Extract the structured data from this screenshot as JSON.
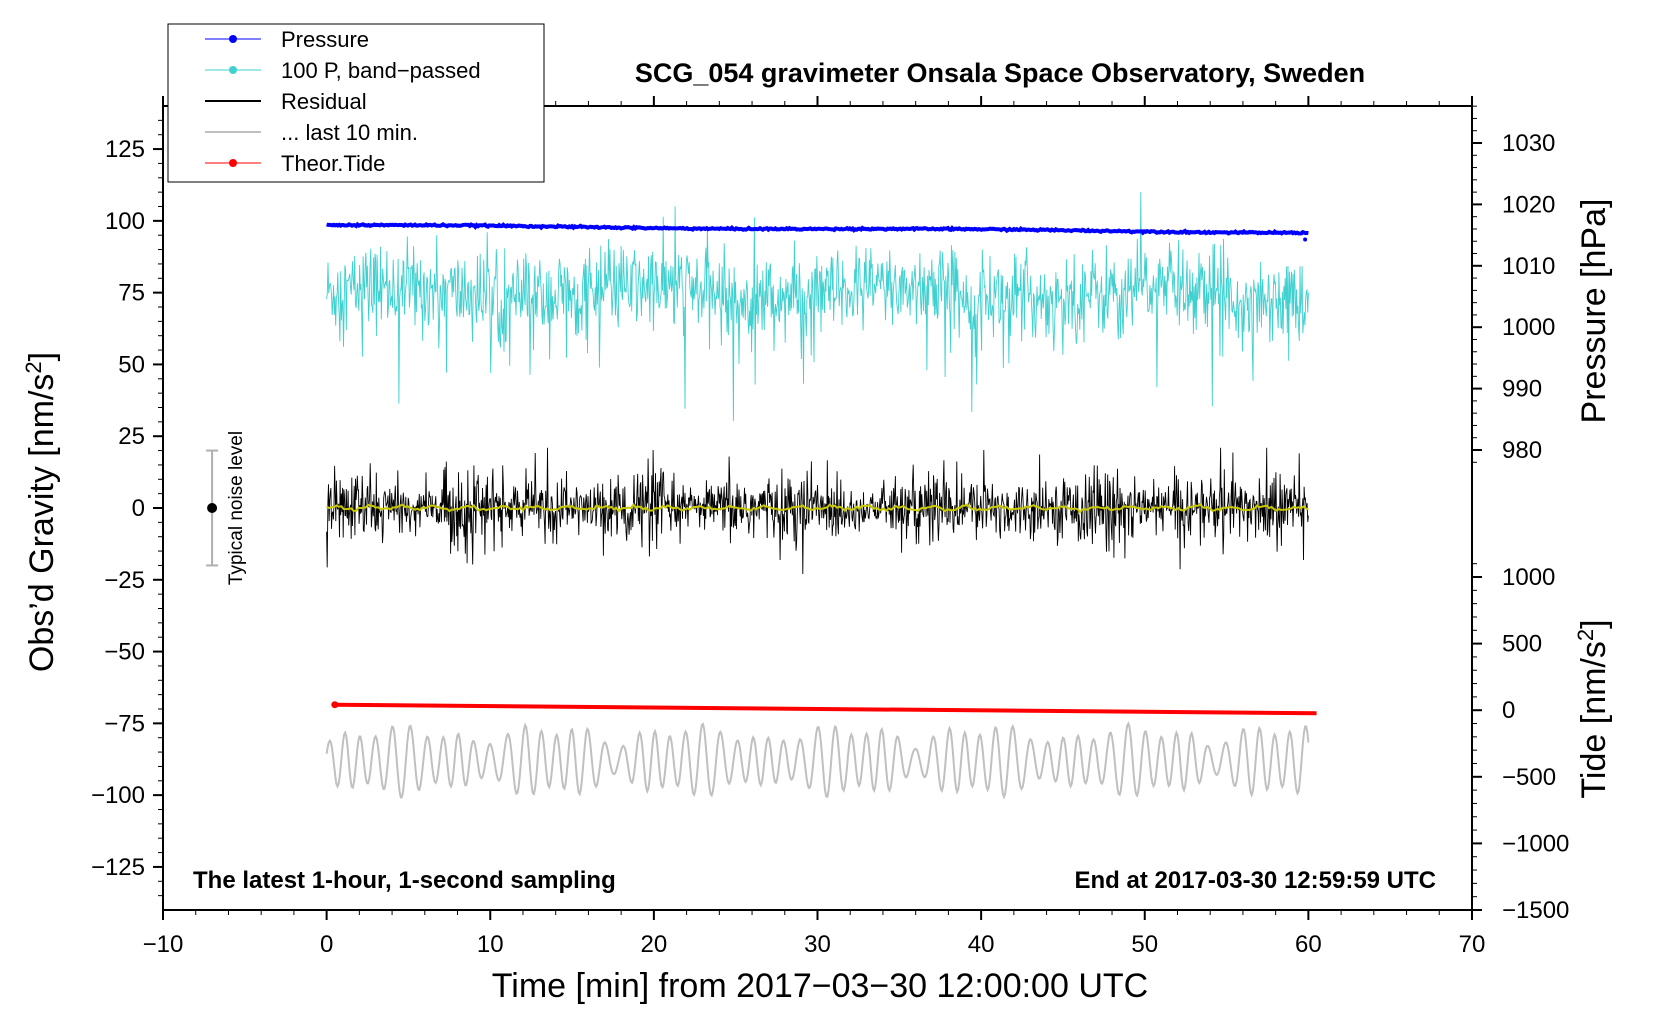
{
  "title": "SCG_054 gravimeter Onsala Space Observatory, Sweden",
  "note_left": "The latest 1-hour, 1-second sampling",
  "note_right": "End at 2017-03-30 12:59:59 UTC",
  "x_axis_label": "Time [min] from 2017−03−30 12:00:00 UTC",
  "y_left_label": "Obs’d Gravity [nm/s",
  "y_left_label_sup": "2",
  "y_left_label_end": "]",
  "y_right_pressure_label": "Pressure [hPa]",
  "y_right_tide_label": "Tide [nm/s",
  "y_right_tide_label_sup": "2",
  "y_right_tide_label_end": "]",
  "noise_label": "Typical noise level",
  "legend": {
    "pressure": "Pressure",
    "bandpassed": "100 P, band−passed",
    "residual": "Residual",
    "last10": "... last 10 min.",
    "tide": "Theor.Tide"
  },
  "colors": {
    "pressure": "#0000ff",
    "bandpassed": "#3fd0d0",
    "residual": "#000000",
    "smoothed_residual": "#c8c800",
    "last10": "#c0c0c0",
    "tide": "#ff0000",
    "noise_bar": "#b0b0b0"
  },
  "chart_data": {
    "type": "line",
    "title": "SCG_054 gravimeter Onsala Space Observatory, Sweden",
    "xlabel": "Time [min] from 2017−03−30 12:00:00 UTC",
    "ylabel_left": "Obs’d Gravity [nm/s2]",
    "ylabel_right_upper": "Pressure [hPa]",
    "ylabel_right_lower": "Tide [nm/s2]",
    "xlim": [
      -10,
      70
    ],
    "ylim_left": [
      -140,
      140
    ],
    "x_ticks": [
      "−10",
      "0",
      "10",
      "20",
      "30",
      "40",
      "50",
      "60",
      "70"
    ],
    "x_tick_values": [
      -10,
      0,
      10,
      20,
      30,
      40,
      50,
      60,
      70
    ],
    "y_left_ticks": [
      "125",
      "100",
      "75",
      "50",
      "25",
      "0",
      "−25",
      "−50",
      "−75",
      "−100",
      "−125"
    ],
    "y_left_tick_values": [
      125,
      100,
      75,
      50,
      25,
      0,
      -25,
      -50,
      -75,
      -100,
      -125
    ],
    "pressure_ticks": [
      "1030",
      "1020",
      "1010",
      "1000",
      "990",
      "980"
    ],
    "pressure_tick_values": [
      1030,
      1020,
      1010,
      1000,
      990,
      980
    ],
    "tide_ticks": [
      "1000",
      "500",
      "0",
      "−500",
      "−1000",
      "−1500"
    ],
    "tide_tick_values": [
      1000,
      500,
      0,
      -500,
      -1000,
      -1500
    ],
    "series": [
      {
        "name": "Pressure",
        "axis": "left",
        "x_range": [
          0,
          60
        ],
        "start": 98.5,
        "end": 96.0
      },
      {
        "name": "100 P, band−passed",
        "axis": "left",
        "x_range": [
          0,
          60
        ],
        "center": 75,
        "typical_min": 38,
        "typical_max": 118
      },
      {
        "name": "Residual",
        "axis": "left",
        "x_range": [
          0,
          60
        ],
        "center": 0,
        "typical_min": -23,
        "typical_max": 21
      },
      {
        "name": "... last 10 min.",
        "axis": "left",
        "x_range": [
          0,
          60
        ],
        "center": -88,
        "typical_min": -104,
        "typical_max": -72
      },
      {
        "name": "Theor.Tide",
        "axis": "left",
        "x_range": [
          0.5,
          60.5
        ],
        "start": -68.5,
        "end": -71.5
      }
    ],
    "noise_level": {
      "x": -7,
      "center": 0,
      "low": -20,
      "high": 20
    }
  }
}
